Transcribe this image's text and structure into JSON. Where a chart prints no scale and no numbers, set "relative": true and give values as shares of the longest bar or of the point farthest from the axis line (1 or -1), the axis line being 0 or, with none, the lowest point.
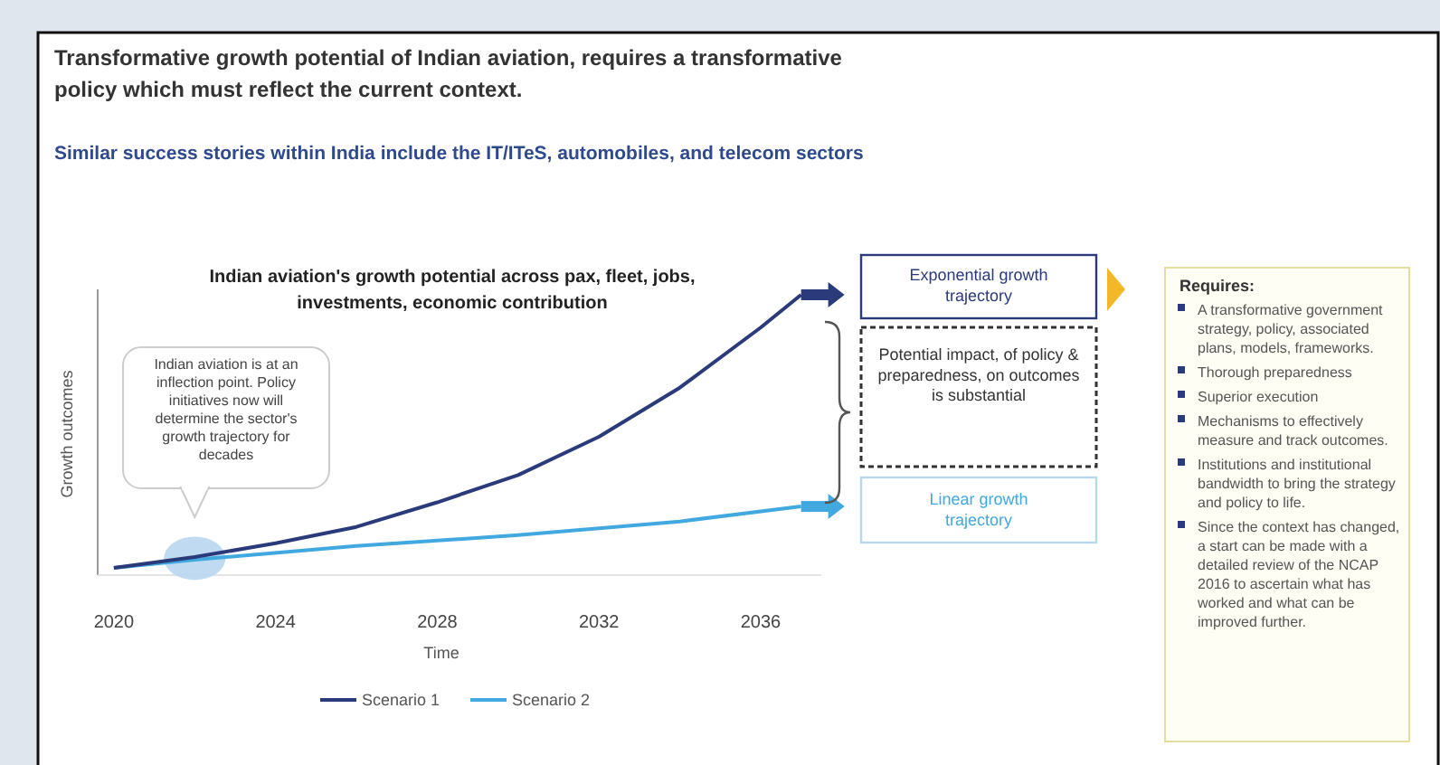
{
  "chart_data": {
    "type": "line",
    "title": "Transformative growth potential of Indian aviation, requires a transformative policy which must reflect the current context.",
    "subtitle": "Similar success stories within India include the IT/ITeS, automobiles, and telecom sectors",
    "xlabel": "Time",
    "ylabel": "Growth outcomes",
    "relative": true,
    "xlim": [
      2019.6,
      2037.5
    ],
    "xticks": [
      2020,
      2024,
      2028,
      2032,
      2036
    ],
    "legend": "bottom",
    "grid": false,
    "series": [
      {
        "name": "Scenario 1",
        "color": "#2b3a7a",
        "x": [
          2020,
          2022,
          2024,
          2026,
          2028,
          2030,
          2032,
          2034,
          2036,
          2037
        ],
        "values": [
          0,
          0.04,
          0.09,
          0.15,
          0.24,
          0.34,
          0.48,
          0.66,
          0.88,
          1
        ]
      },
      {
        "name": "Scenario 2",
        "color": "#41a9e0",
        "x": [
          2020,
          2022,
          2026,
          2030,
          2034,
          2037
        ],
        "values": [
          0,
          0.03,
          0.08,
          0.12,
          0.17,
          0.225
        ]
      }
    ],
    "annotations": [
      "Indian aviation's growth potential across pax, fleet, jobs, investments, economic contribution",
      "Indian aviation is at an inflection point. Policy initiatives now will determine the sector's growth trajectory for decades",
      "Exponential growth trajectory",
      "Potential impact, of policy & preparedness, on outcomes is substantial",
      "Linear growth trajectory",
      "Requires:",
      "A transformative government strategy, policy, associated plans, models, frameworks.",
      "Thorough preparedness",
      "Superior execution",
      "Mechanisms to effectively measure and track outcomes.",
      "Institutions and institutional bandwidth to bring the strategy and policy to life.",
      "Since the context has changed, a start can be made with a detailed review of the NCAP 2016 to ascertain what has worked and what can be improved further."
    ]
  }
}
